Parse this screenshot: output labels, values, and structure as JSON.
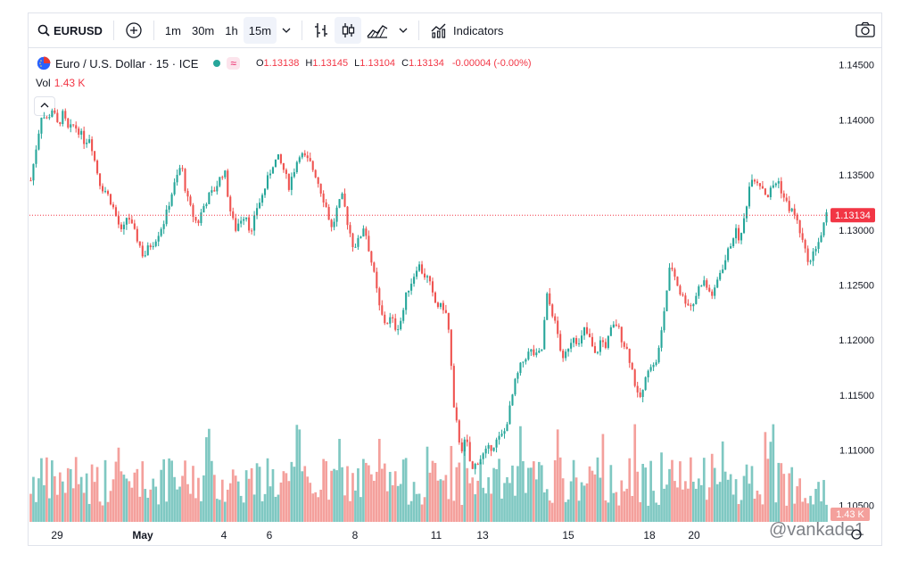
{
  "toolbar": {
    "symbol": "EURUSD",
    "intervals": [
      "1m",
      "30m",
      "1h",
      "15m"
    ],
    "active_interval": "15m",
    "indicators_label": "Indicators"
  },
  "legend": {
    "title": "Euro / U.S. Dollar · 15 · ICE",
    "o_label": "O",
    "o": "1.13138",
    "h_label": "H",
    "h": "1.13145",
    "l_label": "L",
    "l": "1.13104",
    "c_label": "C",
    "c": "1.13134",
    "change": "-0.00004 (-0.00%)"
  },
  "volume": {
    "label": "Vol",
    "value": "1.43 K",
    "axis_badge": "1.43 K"
  },
  "price_badge": "1.13134",
  "watermark": "@vankade1",
  "colors": {
    "up": "#26a69a",
    "down": "#ef5350",
    "badge": "#f23645",
    "vol_up": "#7fc8c2",
    "vol_down": "#f4a09c"
  },
  "chart_data": {
    "type": "candlestick",
    "y_ticks": [
      "1.14500",
      "1.14000",
      "1.13500",
      "1.13000",
      "1.12500",
      "1.12000",
      "1.11500",
      "1.11000",
      "1.10500"
    ],
    "ylim": [
      1.1035,
      1.1465
    ],
    "x_ticks": [
      "29",
      "May",
      "4",
      "6",
      "8",
      "11",
      "13",
      "15",
      "18",
      "20"
    ],
    "last_price": 1.13134,
    "close_path": [
      [
        0,
        1.1345
      ],
      [
        2,
        1.1375
      ],
      [
        4,
        1.1405
      ],
      [
        6,
        1.14
      ],
      [
        8,
        1.141
      ],
      [
        10,
        1.1395
      ],
      [
        12,
        1.1405
      ],
      [
        14,
        1.139
      ],
      [
        16,
        1.1395
      ],
      [
        18,
        1.139
      ],
      [
        20,
        1.138
      ],
      [
        22,
        1.1385
      ],
      [
        24,
        1.136
      ],
      [
        26,
        1.134
      ],
      [
        28,
        1.1335
      ],
      [
        30,
        1.1325
      ],
      [
        32,
        1.131
      ],
      [
        34,
        1.1295
      ],
      [
        36,
        1.1315
      ],
      [
        38,
        1.13
      ],
      [
        40,
        1.129
      ],
      [
        42,
        1.1275
      ],
      [
        44,
        1.1285
      ],
      [
        46,
        1.129
      ],
      [
        48,
        1.13
      ],
      [
        50,
        1.131
      ],
      [
        52,
        1.133
      ],
      [
        54,
        1.1345
      ],
      [
        56,
        1.136
      ],
      [
        58,
        1.133
      ],
      [
        60,
        1.1315
      ],
      [
        62,
        1.1305
      ],
      [
        64,
        1.132
      ],
      [
        66,
        1.133
      ],
      [
        68,
        1.1335
      ],
      [
        70,
        1.1345
      ],
      [
        72,
        1.1355
      ],
      [
        74,
        1.132
      ],
      [
        76,
        1.13
      ],
      [
        78,
        1.131
      ],
      [
        80,
        1.1315
      ],
      [
        82,
        1.1295
      ],
      [
        84,
        1.132
      ],
      [
        86,
        1.133
      ],
      [
        88,
        1.1345
      ],
      [
        90,
        1.136
      ],
      [
        92,
        1.1365
      ],
      [
        94,
        1.1355
      ],
      [
        96,
        1.134
      ],
      [
        98,
        1.1355
      ],
      [
        100,
        1.137
      ],
      [
        102,
        1.1365
      ],
      [
        104,
        1.136
      ],
      [
        106,
        1.135
      ],
      [
        108,
        1.1335
      ],
      [
        110,
        1.132
      ],
      [
        112,
        1.13
      ],
      [
        114,
        1.132
      ],
      [
        116,
        1.133
      ],
      [
        118,
        1.1305
      ],
      [
        120,
        1.1285
      ],
      [
        122,
        1.129
      ],
      [
        124,
        1.1305
      ],
      [
        126,
        1.128
      ],
      [
        128,
        1.1255
      ],
      [
        130,
        1.1225
      ],
      [
        132,
        1.1215
      ],
      [
        134,
        1.122
      ],
      [
        136,
        1.121
      ],
      [
        138,
        1.122
      ],
      [
        140,
        1.1245
      ],
      [
        142,
        1.1255
      ],
      [
        144,
        1.127
      ],
      [
        146,
        1.126
      ],
      [
        148,
        1.1255
      ],
      [
        150,
        1.1235
      ],
      [
        152,
        1.123
      ],
      [
        154,
        1.123
      ],
      [
        156,
        1.12
      ],
      [
        157,
        1.114
      ],
      [
        158,
        1.113
      ],
      [
        160,
        1.11
      ],
      [
        162,
        1.111
      ],
      [
        164,
        1.108
      ],
      [
        166,
        1.109
      ],
      [
        168,
        1.1095
      ],
      [
        170,
        1.11
      ],
      [
        172,
        1.1105
      ],
      [
        174,
        1.111
      ],
      [
        176,
        1.1115
      ],
      [
        178,
        1.1135
      ],
      [
        180,
        1.116
      ],
      [
        182,
        1.1175
      ],
      [
        184,
        1.1185
      ],
      [
        186,
        1.119
      ],
      [
        188,
        1.1185
      ],
      [
        190,
        1.119
      ],
      [
        192,
        1.124
      ],
      [
        194,
        1.1225
      ],
      [
        196,
        1.1205
      ],
      [
        198,
        1.118
      ],
      [
        200,
        1.1195
      ],
      [
        202,
        1.1205
      ],
      [
        204,
        1.1195
      ],
      [
        206,
        1.121
      ],
      [
        208,
        1.12
      ],
      [
        210,
        1.1185
      ],
      [
        212,
        1.12
      ],
      [
        214,
        1.1195
      ],
      [
        216,
        1.121
      ],
      [
        218,
        1.1215
      ],
      [
        220,
        1.12
      ],
      [
        222,
        1.119
      ],
      [
        224,
        1.117
      ],
      [
        226,
        1.1145
      ],
      [
        228,
        1.1155
      ],
      [
        230,
        1.118
      ],
      [
        232,
        1.1175
      ],
      [
        234,
        1.1195
      ],
      [
        236,
        1.1235
      ],
      [
        238,
        1.127
      ],
      [
        240,
        1.1255
      ],
      [
        242,
        1.124
      ],
      [
        244,
        1.1235
      ],
      [
        246,
        1.123
      ],
      [
        248,
        1.1245
      ],
      [
        250,
        1.1255
      ],
      [
        252,
        1.1245
      ],
      [
        254,
        1.124
      ],
      [
        256,
        1.126
      ],
      [
        258,
        1.127
      ],
      [
        260,
        1.1285
      ],
      [
        262,
        1.13
      ],
      [
        264,
        1.129
      ],
      [
        266,
        1.132
      ],
      [
        268,
        1.135
      ],
      [
        270,
        1.1345
      ],
      [
        272,
        1.134
      ],
      [
        274,
        1.133
      ],
      [
        276,
        1.134
      ],
      [
        278,
        1.1345
      ],
      [
        280,
        1.133
      ],
      [
        282,
        1.132
      ],
      [
        284,
        1.1315
      ],
      [
        286,
        1.13
      ],
      [
        288,
        1.128
      ],
      [
        290,
        1.127
      ],
      [
        292,
        1.1285
      ],
      [
        294,
        1.1295
      ],
      [
        296,
        1.1313
      ]
    ]
  }
}
